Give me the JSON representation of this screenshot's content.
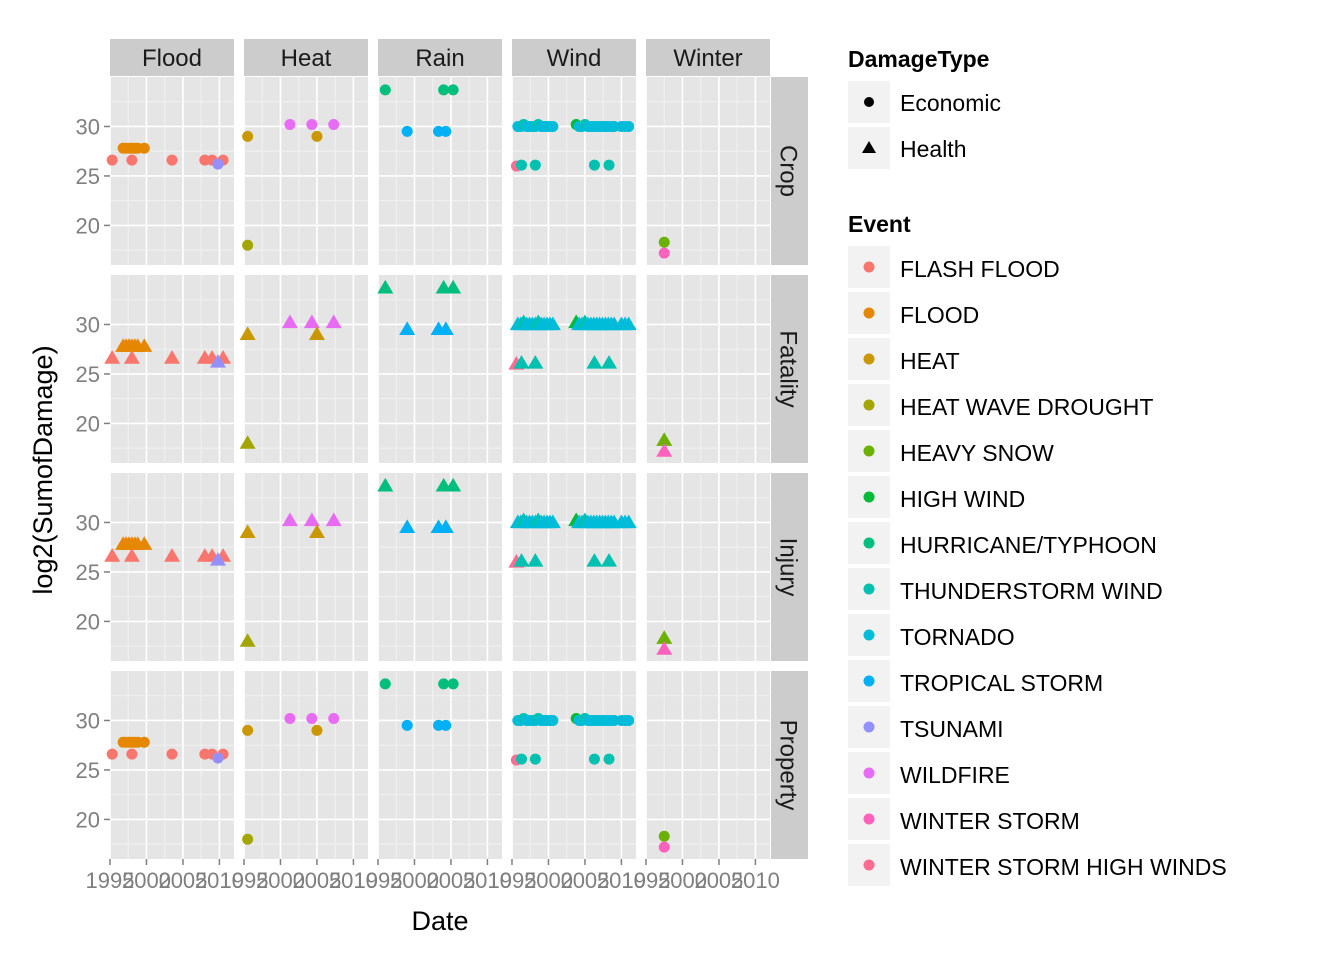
{
  "chart_data": {
    "type": "scatter",
    "title": "",
    "xlabel": "Date",
    "ylabel": "log2(SumofDamage)",
    "facet_columns": [
      "Flood",
      "Heat",
      "Rain",
      "Wind",
      "Winter"
    ],
    "facet_rows": [
      "Crop",
      "Fatality",
      "Injury",
      "Property"
    ],
    "xlim": [
      1995,
      2012
    ],
    "ylim": [
      16,
      35
    ],
    "x_ticks": [
      1995,
      2000,
      2005,
      2010
    ],
    "x_tick_labels": [
      "1995",
      "2000",
      "2005",
      "2010"
    ],
    "y_ticks": [
      20,
      25,
      30
    ],
    "y_tick_labels": [
      "20",
      "25",
      "30"
    ],
    "grid": true,
    "legend_position": "right",
    "legends": {
      "damage_type": {
        "title": "DamageType",
        "entries": [
          {
            "label": "Economic",
            "shape": "circle"
          },
          {
            "label": "Health",
            "shape": "triangle"
          }
        ]
      },
      "event": {
        "title": "Event",
        "entries": [
          {
            "label": "FLASH FLOOD",
            "color": "#F8766D"
          },
          {
            "label": "FLOOD",
            "color": "#E58700"
          },
          {
            "label": "HEAT",
            "color": "#C99800"
          },
          {
            "label": "HEAT WAVE DROUGHT",
            "color": "#A3A500"
          },
          {
            "label": "HEAVY SNOW",
            "color": "#6BB100"
          },
          {
            "label": "HIGH WIND",
            "color": "#00BA38"
          },
          {
            "label": "HURRICANE/TYPHOON",
            "color": "#00BF7D"
          },
          {
            "label": "THUNDERSTORM WIND",
            "color": "#00C0AF"
          },
          {
            "label": "TORNADO",
            "color": "#00BCD8"
          },
          {
            "label": "TROPICAL STORM",
            "color": "#00B0F6"
          },
          {
            "label": "TSUNAMI",
            "color": "#9590FF"
          },
          {
            "label": "WILDFIRE",
            "color": "#E76BF3"
          },
          {
            "label": "WINTER STORM",
            "color": "#FF62BC"
          },
          {
            "label": "WINTER STORM HIGH WINDS",
            "color": "#FF6C91"
          }
        ]
      }
    },
    "points_by_facet_column": {
      "Flood": [
        {
          "x": 1995.3,
          "y": 26.6,
          "event": "FLASH FLOOD"
        },
        {
          "x": 1996.8,
          "y": 27.8,
          "event": "FLOOD"
        },
        {
          "x": 1997.2,
          "y": 27.8,
          "event": "FLOOD"
        },
        {
          "x": 1997.6,
          "y": 27.8,
          "event": "FLOOD"
        },
        {
          "x": 1998.0,
          "y": 27.8,
          "event": "FLOOD"
        },
        {
          "x": 1998.4,
          "y": 27.8,
          "event": "FLOOD"
        },
        {
          "x": 1998.8,
          "y": 27.8,
          "event": "FLOOD"
        },
        {
          "x": 1999.7,
          "y": 27.8,
          "event": "FLOOD"
        },
        {
          "x": 1998.0,
          "y": 26.6,
          "event": "FLASH FLOOD"
        },
        {
          "x": 2003.5,
          "y": 26.6,
          "event": "FLASH FLOOD"
        },
        {
          "x": 2008.0,
          "y": 26.6,
          "event": "FLASH FLOOD"
        },
        {
          "x": 2009.0,
          "y": 26.6,
          "event": "FLASH FLOOD"
        },
        {
          "x": 2010.5,
          "y": 26.6,
          "event": "FLASH FLOOD"
        },
        {
          "x": 2009.8,
          "y": 26.2,
          "event": "TSUNAMI"
        }
      ],
      "Heat": [
        {
          "x": 1995.5,
          "y": 29.0,
          "event": "HEAT"
        },
        {
          "x": 1995.5,
          "y": 18.0,
          "event": "HEAT WAVE DROUGHT"
        },
        {
          "x": 2001.3,
          "y": 30.2,
          "event": "WILDFIRE"
        },
        {
          "x": 2004.3,
          "y": 30.2,
          "event": "WILDFIRE"
        },
        {
          "x": 2005.0,
          "y": 29.0,
          "event": "HEAT"
        },
        {
          "x": 2007.3,
          "y": 30.2,
          "event": "WILDFIRE"
        }
      ],
      "Rain": [
        {
          "x": 1996.0,
          "y": 33.7,
          "event": "HURRICANE/TYPHOON"
        },
        {
          "x": 1999.0,
          "y": 29.5,
          "event": "TROPICAL STORM"
        },
        {
          "x": 2003.3,
          "y": 29.5,
          "event": "TROPICAL STORM"
        },
        {
          "x": 2004.3,
          "y": 29.5,
          "event": "TROPICAL STORM"
        },
        {
          "x": 2004.0,
          "y": 33.7,
          "event": "HURRICANE/TYPHOON"
        },
        {
          "x": 2005.3,
          "y": 33.7,
          "event": "HURRICANE/TYPHOON"
        }
      ],
      "Wind": [
        {
          "x": 1995.8,
          "y": 30.0,
          "event": "TORNADO"
        },
        {
          "x": 1996.2,
          "y": 30.0,
          "event": "TORNADO"
        },
        {
          "x": 1996.6,
          "y": 30.2,
          "event": "THUNDERSTORM WIND"
        },
        {
          "x": 1997.0,
          "y": 30.0,
          "event": "TORNADO"
        },
        {
          "x": 1997.4,
          "y": 30.0,
          "event": "TORNADO"
        },
        {
          "x": 1997.8,
          "y": 30.0,
          "event": "TORNADO"
        },
        {
          "x": 1998.2,
          "y": 30.0,
          "event": "TORNADO"
        },
        {
          "x": 1998.6,
          "y": 30.2,
          "event": "THUNDERSTORM WIND"
        },
        {
          "x": 1999.0,
          "y": 30.0,
          "event": "TORNADO"
        },
        {
          "x": 1999.4,
          "y": 30.0,
          "event": "TORNADO"
        },
        {
          "x": 1999.8,
          "y": 30.0,
          "event": "TORNADO"
        },
        {
          "x": 2000.2,
          "y": 30.0,
          "event": "TORNADO"
        },
        {
          "x": 2000.6,
          "y": 30.0,
          "event": "TORNADO"
        },
        {
          "x": 2003.8,
          "y": 30.2,
          "event": "HIGH WIND"
        },
        {
          "x": 2004.2,
          "y": 30.0,
          "event": "TORNADO"
        },
        {
          "x": 2004.6,
          "y": 30.0,
          "event": "TORNADO"
        },
        {
          "x": 2005.0,
          "y": 30.2,
          "event": "THUNDERSTORM WIND"
        },
        {
          "x": 2005.4,
          "y": 30.0,
          "event": "TORNADO"
        },
        {
          "x": 2005.8,
          "y": 30.0,
          "event": "TORNADO"
        },
        {
          "x": 2006.2,
          "y": 30.0,
          "event": "TORNADO"
        },
        {
          "x": 2006.6,
          "y": 30.0,
          "event": "TORNADO"
        },
        {
          "x": 2007.0,
          "y": 30.0,
          "event": "TORNADO"
        },
        {
          "x": 2007.4,
          "y": 30.0,
          "event": "TORNADO"
        },
        {
          "x": 2007.8,
          "y": 30.0,
          "event": "TORNADO"
        },
        {
          "x": 2008.2,
          "y": 30.0,
          "event": "TORNADO"
        },
        {
          "x": 2008.6,
          "y": 30.0,
          "event": "TORNADO"
        },
        {
          "x": 2009.0,
          "y": 30.0,
          "event": "TORNADO"
        },
        {
          "x": 2010.0,
          "y": 30.0,
          "event": "TORNADO"
        },
        {
          "x": 2010.5,
          "y": 30.0,
          "event": "TORNADO"
        },
        {
          "x": 2011.0,
          "y": 30.0,
          "event": "TORNADO"
        },
        {
          "x": 1995.6,
          "y": 26.0,
          "event": "WINTER STORM HIGH WINDS"
        },
        {
          "x": 1996.3,
          "y": 26.1,
          "event": "THUNDERSTORM WIND"
        },
        {
          "x": 1998.2,
          "y": 26.1,
          "event": "THUNDERSTORM WIND"
        },
        {
          "x": 2006.3,
          "y": 26.1,
          "event": "THUNDERSTORM WIND"
        },
        {
          "x": 2008.3,
          "y": 26.1,
          "event": "THUNDERSTORM WIND"
        }
      ],
      "Winter": [
        {
          "x": 1997.5,
          "y": 18.3,
          "event": "HEAVY SNOW"
        },
        {
          "x": 1997.5,
          "y": 17.2,
          "event": "WINTER STORM"
        }
      ]
    }
  }
}
